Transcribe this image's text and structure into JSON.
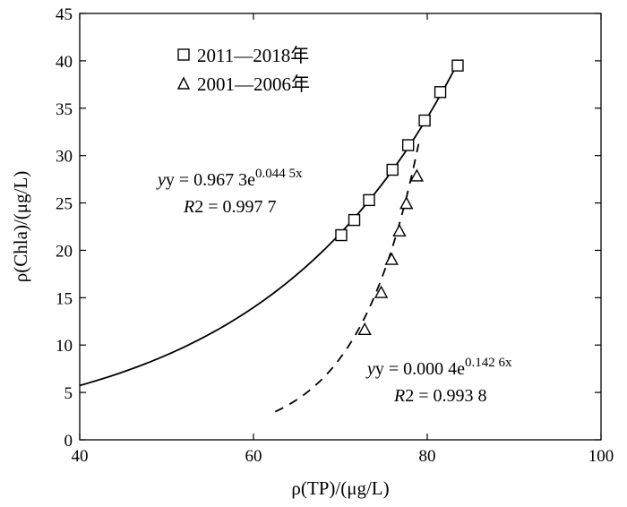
{
  "chart_data": {
    "type": "scatter",
    "xlabel": "ρ(TP)/(μg/L)",
    "ylabel": "ρ(Chla)/(μg/L)",
    "xlim": [
      40,
      100
    ],
    "ylim": [
      0,
      45
    ],
    "xticks": [
      40,
      60,
      80,
      100
    ],
    "yticks": [
      0,
      5,
      10,
      15,
      20,
      25,
      30,
      35,
      40,
      45
    ],
    "grid": false,
    "legend_position": "top-left",
    "series": [
      {
        "name": "2011—2018年",
        "marker": "square",
        "x": [
          70.1,
          71.6,
          73.3,
          76.0,
          77.8,
          79.7,
          81.5,
          83.5
        ],
        "y": [
          21.6,
          23.2,
          25.3,
          28.5,
          31.1,
          33.7,
          36.7,
          39.5
        ],
        "fit": {
          "style": "solid",
          "a": 0.9673,
          "b": 0.0445,
          "x_range": [
            40,
            83.5
          ],
          "equation": {
            "prefix": "y = 0.967 3e",
            "exponent": "0.044 5x",
            "r2_prefix": "R",
            "r2_value": "2 = 0.997 7"
          }
        }
      },
      {
        "name": "2001—2006年",
        "marker": "triangle",
        "x": [
          72.8,
          74.7,
          75.9,
          76.8,
          77.6,
          78.8
        ],
        "y": [
          11.6,
          15.5,
          19.0,
          22.0,
          24.9,
          27.8
        ],
        "fit": {
          "style": "dashed",
          "a": 0.0004,
          "b": 0.1426,
          "x_range": [
            62.5,
            79.0
          ],
          "equation": {
            "prefix": "y = 0.000 4e",
            "exponent": "0.142 6x",
            "r2_prefix": "R",
            "r2_value": "2 = 0.993 8"
          }
        }
      }
    ]
  }
}
